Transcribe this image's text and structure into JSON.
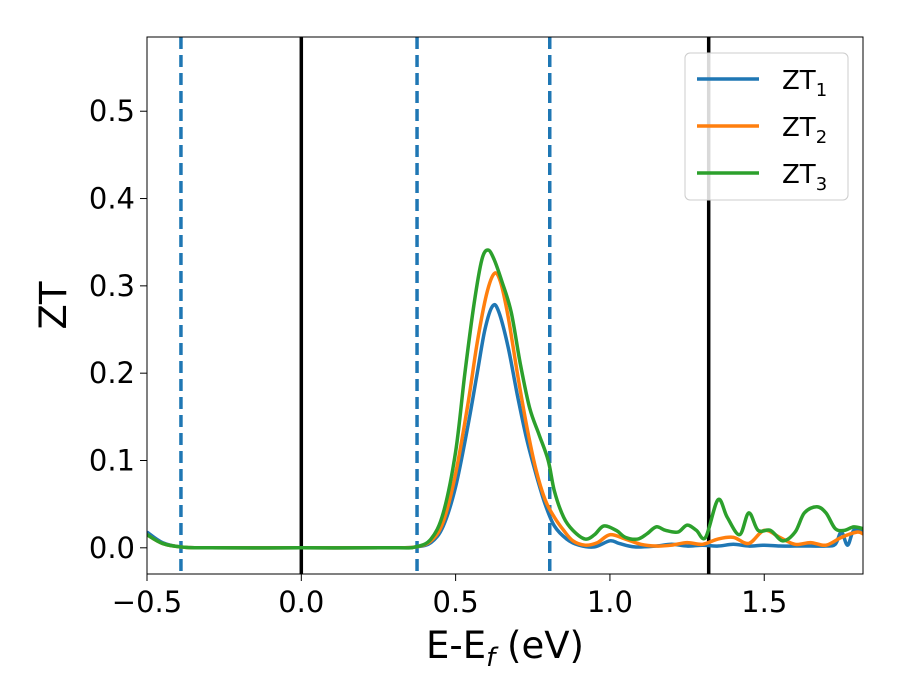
{
  "chart_data": {
    "type": "line",
    "title": "",
    "xlabel": "E-E",
    "xlabel_sub": "f",
    "xlabel_unit": " (eV)",
    "ylabel": "ZT",
    "xlim": [
      -0.5,
      1.82
    ],
    "ylim": [
      -0.03,
      0.585
    ],
    "grid": false,
    "legend_position": "top-right",
    "x_ticks": [
      {
        "value": -0.5,
        "label": "−0.5"
      },
      {
        "value": 0.0,
        "label": "0.0"
      },
      {
        "value": 0.5,
        "label": "0.5"
      },
      {
        "value": 1.0,
        "label": "1.0"
      },
      {
        "value": 1.5,
        "label": "1.5"
      }
    ],
    "y_ticks": [
      {
        "value": 0.0,
        "label": "0.0"
      },
      {
        "value": 0.1,
        "label": "0.1"
      },
      {
        "value": 0.2,
        "label": "0.2"
      },
      {
        "value": 0.3,
        "label": "0.3"
      },
      {
        "value": 0.4,
        "label": "0.4"
      },
      {
        "value": 0.5,
        "label": "0.5"
      }
    ],
    "vertical_lines": [
      {
        "x": -0.39,
        "style": "dashed",
        "color": "#1f77b4"
      },
      {
        "x": 0.0,
        "style": "solid",
        "color": "#000000"
      },
      {
        "x": 0.375,
        "style": "dashed",
        "color": "#1f77b4"
      },
      {
        "x": 0.805,
        "style": "dashed",
        "color": "#1f77b4"
      },
      {
        "x": 1.32,
        "style": "solid",
        "color": "#000000"
      }
    ],
    "series": [
      {
        "name": "ZT",
        "sub": "1",
        "color": "#1f77b4",
        "points": [
          [
            -0.5,
            0.018
          ],
          [
            -0.45,
            0.006
          ],
          [
            -0.39,
            0.001
          ],
          [
            -0.3,
            0.0
          ],
          [
            0.0,
            0.0
          ],
          [
            0.3,
            0.0
          ],
          [
            0.37,
            0.001
          ],
          [
            0.42,
            0.006
          ],
          [
            0.46,
            0.025
          ],
          [
            0.5,
            0.07
          ],
          [
            0.54,
            0.14
          ],
          [
            0.57,
            0.2
          ],
          [
            0.595,
            0.25
          ],
          [
            0.62,
            0.277
          ],
          [
            0.64,
            0.27
          ],
          [
            0.67,
            0.23
          ],
          [
            0.7,
            0.175
          ],
          [
            0.73,
            0.125
          ],
          [
            0.76,
            0.085
          ],
          [
            0.79,
            0.05
          ],
          [
            0.82,
            0.025
          ],
          [
            0.86,
            0.01
          ],
          [
            0.9,
            0.003
          ],
          [
            0.95,
            0.001
          ],
          [
            1.0,
            0.008
          ],
          [
            1.03,
            0.005
          ],
          [
            1.08,
            0.001
          ],
          [
            1.15,
            0.002
          ],
          [
            1.2,
            0.004
          ],
          [
            1.25,
            0.002
          ],
          [
            1.3,
            0.003
          ],
          [
            1.35,
            0.002
          ],
          [
            1.4,
            0.004
          ],
          [
            1.45,
            0.002
          ],
          [
            1.5,
            0.003
          ],
          [
            1.55,
            0.002
          ],
          [
            1.6,
            0.002
          ],
          [
            1.65,
            0.002
          ],
          [
            1.7,
            0.002
          ],
          [
            1.73,
            0.004
          ],
          [
            1.75,
            0.018
          ],
          [
            1.77,
            0.003
          ],
          [
            1.79,
            0.02
          ],
          [
            1.82,
            0.018
          ]
        ]
      },
      {
        "name": "ZT",
        "sub": "2",
        "color": "#ff7f0e",
        "points": [
          [
            -0.5,
            0.015
          ],
          [
            -0.45,
            0.005
          ],
          [
            -0.39,
            0.001
          ],
          [
            -0.3,
            0.0
          ],
          [
            0.0,
            0.0
          ],
          [
            0.3,
            0.0
          ],
          [
            0.37,
            0.001
          ],
          [
            0.42,
            0.008
          ],
          [
            0.46,
            0.03
          ],
          [
            0.5,
            0.085
          ],
          [
            0.54,
            0.165
          ],
          [
            0.57,
            0.235
          ],
          [
            0.6,
            0.29
          ],
          [
            0.625,
            0.314
          ],
          [
            0.645,
            0.305
          ],
          [
            0.67,
            0.265
          ],
          [
            0.7,
            0.2
          ],
          [
            0.73,
            0.14
          ],
          [
            0.76,
            0.09
          ],
          [
            0.79,
            0.055
          ],
          [
            0.82,
            0.035
          ],
          [
            0.85,
            0.02
          ],
          [
            0.88,
            0.008
          ],
          [
            0.92,
            0.003
          ],
          [
            0.96,
            0.006
          ],
          [
            1.0,
            0.015
          ],
          [
            1.05,
            0.01
          ],
          [
            1.1,
            0.004
          ],
          [
            1.15,
            0.002
          ],
          [
            1.2,
            0.003
          ],
          [
            1.25,
            0.006
          ],
          [
            1.3,
            0.004
          ],
          [
            1.35,
            0.01
          ],
          [
            1.4,
            0.012
          ],
          [
            1.45,
            0.005
          ],
          [
            1.5,
            0.02
          ],
          [
            1.55,
            0.012
          ],
          [
            1.6,
            0.004
          ],
          [
            1.65,
            0.006
          ],
          [
            1.7,
            0.003
          ],
          [
            1.75,
            0.012
          ],
          [
            1.8,
            0.018
          ],
          [
            1.82,
            0.016
          ]
        ]
      },
      {
        "name": "ZT",
        "sub": "3",
        "color": "#2ca02c",
        "points": [
          [
            -0.5,
            0.015
          ],
          [
            -0.45,
            0.005
          ],
          [
            -0.39,
            0.001
          ],
          [
            -0.3,
            0.0
          ],
          [
            0.0,
            0.0
          ],
          [
            0.3,
            0.0
          ],
          [
            0.37,
            0.001
          ],
          [
            0.42,
            0.01
          ],
          [
            0.46,
            0.04
          ],
          [
            0.5,
            0.11
          ],
          [
            0.53,
            0.2
          ],
          [
            0.56,
            0.28
          ],
          [
            0.585,
            0.33
          ],
          [
            0.605,
            0.341
          ],
          [
            0.625,
            0.33
          ],
          [
            0.65,
            0.305
          ],
          [
            0.68,
            0.27
          ],
          [
            0.71,
            0.21
          ],
          [
            0.74,
            0.16
          ],
          [
            0.77,
            0.13
          ],
          [
            0.8,
            0.1
          ],
          [
            0.82,
            0.065
          ],
          [
            0.85,
            0.035
          ],
          [
            0.88,
            0.02
          ],
          [
            0.92,
            0.01
          ],
          [
            0.95,
            0.015
          ],
          [
            0.98,
            0.025
          ],
          [
            1.02,
            0.02
          ],
          [
            1.05,
            0.012
          ],
          [
            1.09,
            0.01
          ],
          [
            1.12,
            0.016
          ],
          [
            1.15,
            0.024
          ],
          [
            1.18,
            0.02
          ],
          [
            1.22,
            0.018
          ],
          [
            1.25,
            0.026
          ],
          [
            1.28,
            0.02
          ],
          [
            1.31,
            0.012
          ],
          [
            1.35,
            0.055
          ],
          [
            1.38,
            0.035
          ],
          [
            1.42,
            0.015
          ],
          [
            1.45,
            0.04
          ],
          [
            1.48,
            0.02
          ],
          [
            1.52,
            0.02
          ],
          [
            1.56,
            0.008
          ],
          [
            1.6,
            0.018
          ],
          [
            1.63,
            0.04
          ],
          [
            1.67,
            0.047
          ],
          [
            1.7,
            0.04
          ],
          [
            1.73,
            0.022
          ],
          [
            1.76,
            0.02
          ],
          [
            1.79,
            0.024
          ],
          [
            1.82,
            0.022
          ]
        ]
      }
    ]
  }
}
